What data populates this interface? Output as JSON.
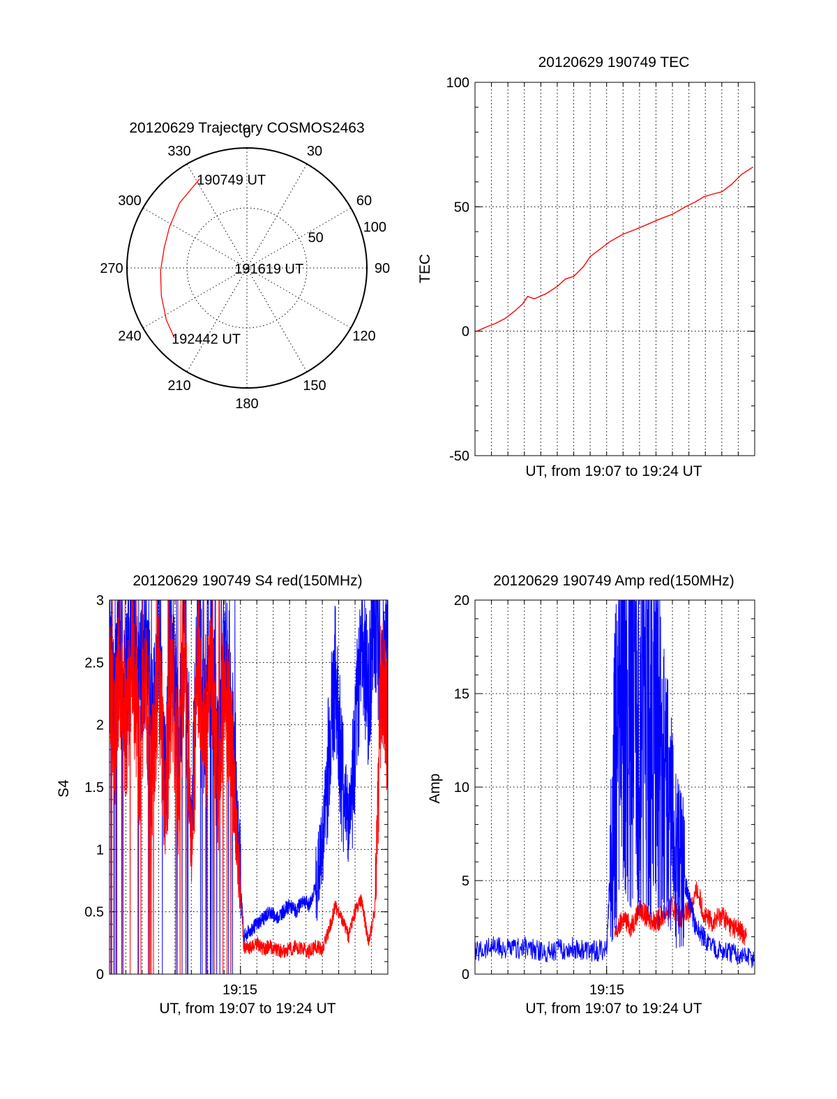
{
  "chart_data": [
    {
      "type": "polar",
      "title": "20120629 Trajectory COSMOS2463",
      "azimuth_labels": [
        "0",
        "30",
        "60",
        "90",
        "120",
        "150",
        "180",
        "210",
        "240",
        "270",
        "300",
        "330"
      ],
      "azimuths": [
        0,
        30,
        60,
        90,
        120,
        150,
        180,
        210,
        240,
        270,
        300,
        330
      ],
      "radial_labels": [
        "50",
        "100"
      ],
      "radial_values": [
        50,
        100
      ],
      "series": [
        {
          "color": "#ff0000",
          "points": [
            {
              "az": 332,
              "el": 84
            },
            {
              "az": 314,
              "el": 78
            },
            {
              "az": 298,
              "el": 73
            },
            {
              "az": 284,
              "el": 71
            },
            {
              "az": 268,
              "el": 72
            },
            {
              "az": 252,
              "el": 75
            },
            {
              "az": 237,
              "el": 80
            },
            {
              "az": 226,
              "el": 84
            }
          ]
        }
      ],
      "annotations": [
        {
          "text": "190749 UT",
          "az": 332,
          "el": 84
        },
        {
          "text": "191619 UT",
          "az": 270,
          "el": 8
        },
        {
          "text": "192442 UT",
          "az": 226,
          "el": 84
        }
      ]
    },
    {
      "type": "line",
      "title": "20120629 190749 TEC",
      "xlabel": "UT, from 19:07 to 19:24 UT",
      "ylabel": "TEC",
      "ylim": [
        -50,
        100
      ],
      "yticks": [
        "-50",
        "0",
        "50",
        "100"
      ],
      "yticks_values": [
        -50,
        0,
        50,
        100
      ],
      "xlim": [
        0,
        17
      ],
      "series": [
        {
          "color": "#ff0000",
          "x": [
            0.1,
            0.8,
            1.2,
            1.8,
            2.4,
            2.9,
            3.2,
            3.6,
            4.3,
            5.0,
            5.5,
            6.0,
            6.6,
            7.0,
            7.6,
            8.2,
            9.0,
            9.8,
            10.5,
            11.2,
            12.0,
            12.8,
            13.4,
            13.9,
            14.4,
            15.0,
            15.6,
            16.2,
            16.9
          ],
          "y": [
            0,
            2,
            3,
            5,
            8,
            11,
            14,
            13,
            15,
            18,
            21,
            22,
            26,
            30,
            33,
            36,
            39,
            41,
            43,
            45,
            47,
            50,
            52,
            54,
            55,
            56,
            59,
            63,
            66
          ]
        }
      ]
    },
    {
      "type": "line",
      "title": "20120629 190749 S4 red(150MHz)",
      "xlabel": "UT, from 19:07 to 19:24 UT",
      "ylabel": "S4",
      "xtick_label": "19:15",
      "xtick_value": 8,
      "ylim": [
        0,
        3
      ],
      "yticks": [
        "0",
        "0.5",
        "1",
        "1.5",
        "2",
        "2.5",
        "3"
      ],
      "yticks_values": [
        0,
        0.5,
        1,
        1.5,
        2,
        2.5,
        3
      ],
      "xlim": [
        0,
        17
      ],
      "series": [
        {
          "color": "#0000ff",
          "x": [
            0.0,
            0.3,
            0.6,
            1.0,
            1.4,
            1.8,
            2.2,
            2.6,
            3.0,
            3.4,
            3.8,
            4.2,
            4.6,
            5.0,
            5.4,
            5.8,
            6.2,
            6.6,
            7.0,
            7.4,
            7.8,
            8.2,
            8.6,
            9.0,
            9.4,
            9.8,
            10.2,
            10.6,
            11.0,
            11.4,
            11.8,
            12.2,
            12.6,
            13.0,
            13.4,
            13.8,
            14.2,
            14.6,
            15.0,
            15.4,
            15.8,
            16.2,
            16.6,
            17.0
          ],
          "y": [
            2.7,
            2.1,
            2.8,
            2.3,
            2.9,
            2.2,
            2.6,
            2.0,
            2.8,
            1.5,
            2.7,
            1.8,
            2.9,
            1.2,
            2.8,
            2.0,
            2.9,
            1.6,
            2.7,
            2.2,
            1.3,
            0.3,
            0.35,
            0.4,
            0.45,
            0.5,
            0.45,
            0.5,
            0.55,
            0.5,
            0.6,
            0.55,
            0.7,
            1.0,
            1.8,
            2.4,
            1.6,
            1.2,
            1.8,
            2.8,
            2.2,
            2.9,
            2.4,
            2.6
          ]
        },
        {
          "color": "#ff0000",
          "x": [
            0.0,
            0.3,
            0.6,
            1.0,
            1.4,
            1.8,
            2.2,
            2.6,
            3.0,
            3.4,
            3.8,
            4.2,
            4.6,
            5.0,
            5.4,
            5.8,
            6.2,
            6.6,
            7.0,
            7.4,
            7.8,
            8.2,
            8.6,
            9.0,
            9.4,
            9.8,
            10.2,
            10.6,
            11.0,
            11.4,
            11.8,
            12.2,
            12.6,
            13.0,
            13.4,
            13.8,
            14.2,
            14.6,
            15.0,
            15.4,
            15.8,
            16.2,
            16.6,
            17.0
          ],
          "y": [
            2.4,
            1.8,
            2.5,
            1.9,
            2.6,
            1.7,
            2.3,
            1.6,
            2.5,
            1.3,
            2.4,
            1.5,
            2.6,
            1.0,
            2.5,
            1.7,
            2.6,
            1.4,
            2.4,
            1.9,
            1.1,
            0.2,
            0.22,
            0.25,
            0.2,
            0.22,
            0.2,
            0.18,
            0.2,
            0.22,
            0.2,
            0.18,
            0.22,
            0.2,
            0.35,
            0.55,
            0.45,
            0.3,
            0.5,
            0.6,
            0.25,
            0.5,
            2.4,
            2.0
          ]
        }
      ]
    },
    {
      "type": "line",
      "title": "20120629 190749 Amp red(150MHz)",
      "xlabel": "UT, from 19:07 to 19:24 UT",
      "ylabel": "Amp",
      "xtick_label": "19:15",
      "xtick_value": 8,
      "ylim": [
        0,
        20
      ],
      "yticks": [
        "0",
        "5",
        "10",
        "15",
        "20"
      ],
      "yticks_values": [
        0,
        5,
        10,
        15,
        20
      ],
      "xlim": [
        0,
        17
      ],
      "series": [
        {
          "color": "#ff0000",
          "x": [
            8.5,
            9.0,
            9.5,
            10.0,
            10.5,
            11.0,
            11.5,
            12.0,
            12.5,
            13.0,
            13.5,
            14.0,
            14.5,
            15.0,
            15.5,
            16.0,
            16.5
          ],
          "y": [
            2.0,
            3.0,
            2.5,
            3.5,
            3.0,
            2.8,
            3.2,
            3.6,
            3.0,
            3.4,
            4.5,
            3.0,
            2.8,
            3.2,
            2.6,
            2.4,
            2.0
          ]
        },
        {
          "color": "#0000ff",
          "x": [
            0.0,
            1.0,
            2.0,
            3.0,
            4.0,
            5.0,
            6.0,
            7.0,
            8.0,
            8.4,
            8.6,
            9.0,
            9.4,
            9.8,
            10.2,
            10.6,
            11.0,
            11.4,
            11.8,
            12.2,
            12.6,
            13.0,
            13.4,
            14.0,
            15.0,
            16.0,
            17.0
          ],
          "y": [
            1.2,
            1.5,
            1.3,
            1.4,
            1.2,
            1.3,
            1.4,
            1.2,
            1.3,
            9.0,
            12.0,
            18.5,
            16.5,
            13.5,
            15.5,
            12.0,
            14.5,
            10.0,
            8.5,
            6.5,
            5.5,
            4.0,
            2.5,
            1.8,
            1.2,
            1.0,
            0.8
          ]
        }
      ]
    }
  ]
}
